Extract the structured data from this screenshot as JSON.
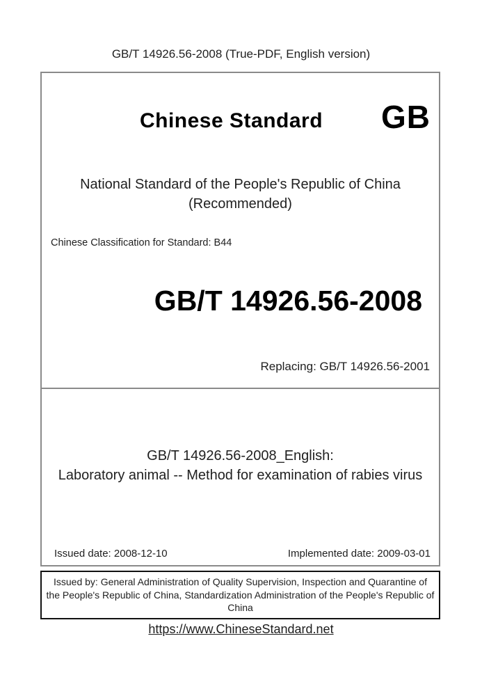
{
  "header": {
    "title": "GB/T 14926.56-2008 (True-PDF, English version)"
  },
  "cover": {
    "brand_title": "Chinese Standard",
    "gb_logo": "GB",
    "national_line1": "National Standard of the People's Republic of China",
    "national_line2": "(Recommended)",
    "classification": "Chinese Classification for Standard: B44",
    "standard_code": "GB/T 14926.56-2008",
    "replacing": "Replacing: GB/T 14926.56-2001",
    "english_title_line1": "GB/T 14926.56-2008_English:",
    "english_title_line2": "Laboratory animal -- Method for examination of rabies virus",
    "issued_date": "Issued date: 2008-12-10",
    "implemented_date": "Implemented date: 2009-03-01"
  },
  "issuer": {
    "text": "Issued by: General Administration of Quality Supervision, Inspection and Quarantine of\nthe People's Republic of China, Standardization Administration of the People's Republic of\nChina"
  },
  "footer": {
    "link": "https://www.ChineseStandard.net",
    "link_href": "https://www.ChineseStandard.net"
  },
  "colors": {
    "main_border": "#8a8a8a",
    "issuer_border": "#111111",
    "text": "#1f1f1f"
  }
}
